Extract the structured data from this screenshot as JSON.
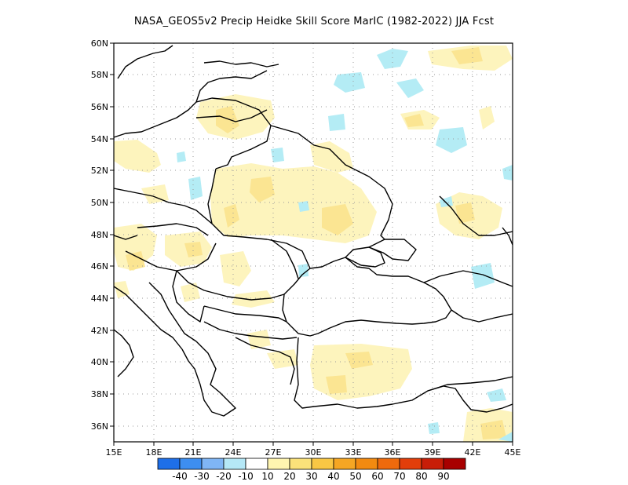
{
  "title": "NASA_GEOS5v2 Precip Heidke Skill Score MarIC (1982-2022) JJA Fcst",
  "map": {
    "lon_range": [
      15,
      45
    ],
    "lat_range": [
      35,
      60
    ],
    "lon_ticks": [
      "15E",
      "18E",
      "21E",
      "24E",
      "27E",
      "30E",
      "33E",
      "36E",
      "39E",
      "42E",
      "45E"
    ],
    "lat_ticks": [
      "36N",
      "38N",
      "40N",
      "42N",
      "44N",
      "46N",
      "48N",
      "50N",
      "52N",
      "54N",
      "56N",
      "58N",
      "60N"
    ],
    "grid": true
  },
  "colorbar": {
    "colors": [
      "#1e6fe8",
      "#3d8ef0",
      "#7fb5f5",
      "#b5e8f7",
      "#ffffff",
      "#fff5b0",
      "#fbe27a",
      "#f9c744",
      "#f5a623",
      "#f28a10",
      "#ee6a0c",
      "#e23e0a",
      "#c81e08",
      "#a80000"
    ],
    "labels": [
      "-40",
      "-30",
      "-20",
      "-10",
      "10",
      "20",
      "30",
      "40",
      "50",
      "60",
      "70",
      "80",
      "90"
    ]
  },
  "fill_colors": {
    "pale_yellow": "#fdf4bd",
    "yellow": "#fbe592",
    "light_blue": "#b4ecf5"
  }
}
